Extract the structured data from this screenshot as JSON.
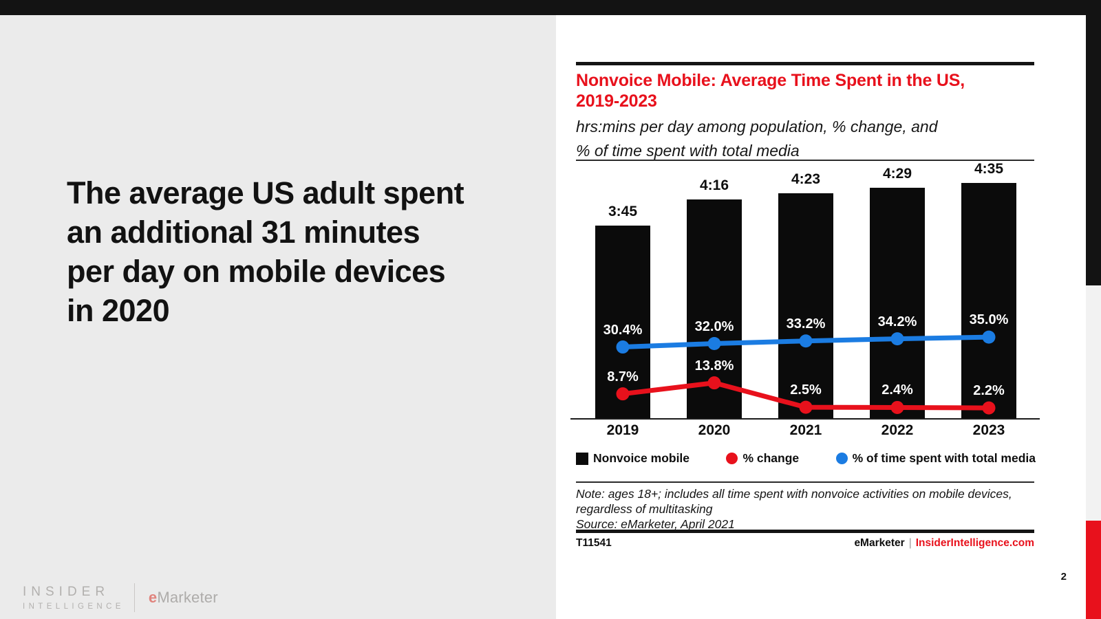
{
  "slide": {
    "headline": "The average US adult spent an additional 31 minutes per day on mobile devices in 2020",
    "page_number": "2"
  },
  "logo": {
    "line1": "INSIDER",
    "line2": "INTELLIGENCE",
    "emarketer_e": "e",
    "emarketer_rest": "Marketer"
  },
  "chart_header": {
    "title_line1": "Nonvoice Mobile: Average Time Spent in the US,",
    "title_line2": "2019-2023",
    "subtitle_line1": "hrs:mins per day among population, % change, and",
    "subtitle_line2": "% of time spent with total media"
  },
  "chart_data": {
    "type": "bar",
    "title": "Nonvoice Mobile: Average Time Spent in the US, 2019-2023",
    "subtitle": "hrs:mins per day among population, % change, and % of time spent with total media",
    "categories": [
      "2019",
      "2020",
      "2021",
      "2022",
      "2023"
    ],
    "bar_series": {
      "name": "Nonvoice mobile",
      "color": "#0b0b0b",
      "labels": [
        "3:45",
        "4:16",
        "4:23",
        "4:29",
        "4:35"
      ],
      "values_minutes": [
        225,
        256,
        263,
        269,
        275
      ]
    },
    "line_series": [
      {
        "name": "% change",
        "type": "line",
        "color": "#e8111c",
        "values": [
          8.7,
          13.8,
          2.5,
          2.4,
          2.2
        ],
        "labels": [
          "8.7%",
          "13.8%",
          "2.5%",
          "2.4%",
          "2.2%"
        ]
      },
      {
        "name": "% of time spent with total media",
        "type": "line",
        "color": "#1b7ce2",
        "values": [
          30.4,
          32.0,
          33.2,
          34.2,
          35.0
        ],
        "labels": [
          "30.4%",
          "32.0%",
          "33.2%",
          "34.2%",
          "35.0%"
        ]
      }
    ],
    "legend_position": "bottom",
    "grid": false
  },
  "note": {
    "line1": "Note: ages 18+; includes all time spent with nonvoice activities on mobile devices,",
    "line2": "regardless of multitasking",
    "source": "Source: eMarketer, April 2021"
  },
  "footer": {
    "doc_id": "T11541",
    "brand": "eMarketer",
    "separator": "|",
    "site": "InsiderIntelligence.com"
  }
}
